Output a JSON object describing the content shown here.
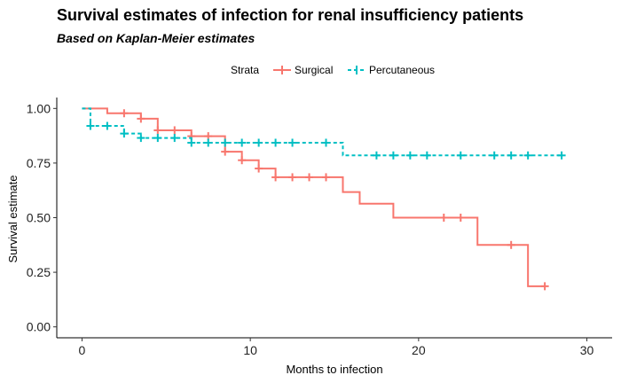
{
  "chart_data": {
    "type": "line",
    "title": "Survival estimates of infection for renal insufficiency patients",
    "subtitle": "Based on Kaplan-Meier estimates",
    "xlabel": "Months to infection",
    "ylabel": "Survival estimate",
    "xlim": [
      -1.5,
      31.5
    ],
    "ylim": [
      -0.05,
      1.05
    ],
    "x_ticks": [
      0,
      10,
      20,
      30
    ],
    "x_tick_labels": [
      "0",
      "10",
      "20",
      "30"
    ],
    "y_ticks": [
      0,
      0.25,
      0.5,
      0.75,
      1.0
    ],
    "y_tick_labels": [
      "0.00",
      "0.25",
      "0.50",
      "0.75",
      "1.00"
    ],
    "grid": false,
    "legend": {
      "title": "Strata",
      "position": "top"
    },
    "series": [
      {
        "name": "Surgical",
        "color": "#F8766D",
        "line_style": "solid",
        "steps": [
          [
            0,
            1.0
          ],
          [
            1.5,
            0.978
          ],
          [
            3.5,
            0.953
          ],
          [
            4.5,
            0.9
          ],
          [
            6.5,
            0.873
          ],
          [
            8.5,
            0.802
          ],
          [
            9.5,
            0.763
          ],
          [
            10.5,
            0.725
          ],
          [
            11.5,
            0.685
          ],
          [
            15.5,
            0.617
          ],
          [
            16.5,
            0.564
          ],
          [
            18.5,
            0.5
          ],
          [
            23.5,
            0.375
          ],
          [
            26.5,
            0.186
          ],
          [
            27.5,
            0.186
          ]
        ],
        "censored": [
          [
            2.5,
            0.978
          ],
          [
            3.5,
            0.953
          ],
          [
            4.5,
            0.9
          ],
          [
            5.5,
            0.9
          ],
          [
            6.5,
            0.873
          ],
          [
            7.5,
            0.873
          ],
          [
            8.5,
            0.802
          ],
          [
            9.5,
            0.763
          ],
          [
            10.5,
            0.725
          ],
          [
            11.5,
            0.685
          ],
          [
            12.5,
            0.685
          ],
          [
            13.5,
            0.685
          ],
          [
            14.5,
            0.685
          ],
          [
            21.5,
            0.5
          ],
          [
            22.5,
            0.5
          ],
          [
            25.5,
            0.375
          ],
          [
            27.5,
            0.186
          ]
        ]
      },
      {
        "name": "Percutaneous",
        "color": "#00BFC4",
        "line_style": "dashed",
        "steps": [
          [
            0,
            1.0
          ],
          [
            0.5,
            0.92
          ],
          [
            2.5,
            0.885
          ],
          [
            3.5,
            0.865
          ],
          [
            6.5,
            0.843
          ],
          [
            15.5,
            0.785
          ],
          [
            28.5,
            0.785
          ]
        ],
        "censored": [
          [
            0.5,
            0.92
          ],
          [
            1.5,
            0.92
          ],
          [
            2.5,
            0.885
          ],
          [
            3.5,
            0.865
          ],
          [
            4.5,
            0.865
          ],
          [
            5.5,
            0.865
          ],
          [
            6.5,
            0.843
          ],
          [
            7.5,
            0.843
          ],
          [
            8.5,
            0.843
          ],
          [
            9.5,
            0.843
          ],
          [
            10.5,
            0.843
          ],
          [
            11.5,
            0.843
          ],
          [
            12.5,
            0.843
          ],
          [
            14.5,
            0.843
          ],
          [
            17.5,
            0.785
          ],
          [
            18.5,
            0.785
          ],
          [
            19.5,
            0.785
          ],
          [
            20.5,
            0.785
          ],
          [
            22.5,
            0.785
          ],
          [
            24.5,
            0.785
          ],
          [
            25.5,
            0.785
          ],
          [
            26.5,
            0.785
          ],
          [
            28.5,
            0.785
          ]
        ]
      }
    ]
  }
}
